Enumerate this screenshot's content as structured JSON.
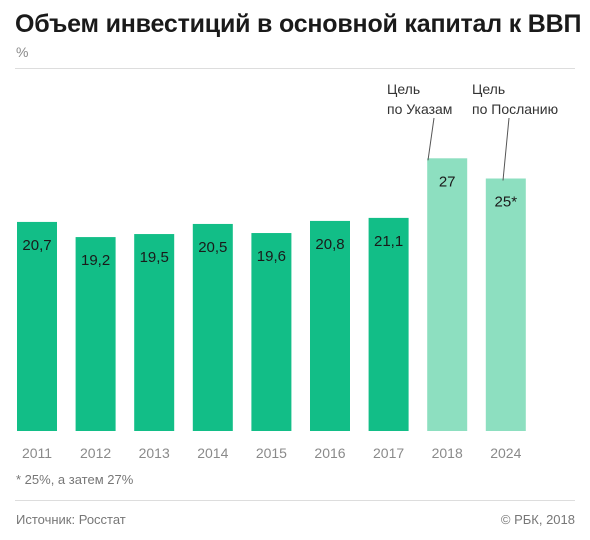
{
  "header": {
    "title": "Объем инвестиций в основной капитал к ВВП",
    "unit": "%"
  },
  "footer": {
    "footnote": "* 25%, а затем 27%",
    "source": "Источник: Росстат",
    "copyright": "© РБК, 2018"
  },
  "colors": {
    "actual": "#12be87",
    "target": "#8ddfc0",
    "gridline": "#dddddd",
    "leader": "#555555"
  },
  "chart_data": {
    "type": "bar",
    "title": "Объем инвестиций в основной капитал к ВВП",
    "ylabel": "%",
    "ylim": [
      0,
      30
    ],
    "grid": false,
    "categories": [
      "2011",
      "2012",
      "2013",
      "2014",
      "2015",
      "2016",
      "2017",
      "2018",
      "2024"
    ],
    "values": [
      20.7,
      19.2,
      19.5,
      20.5,
      19.6,
      20.8,
      21.1,
      27,
      25
    ],
    "value_labels": [
      "20,7",
      "19,2",
      "19,5",
      "20,5",
      "19,6",
      "20,8",
      "21,1",
      "27",
      "25*"
    ],
    "kind": [
      "actual",
      "actual",
      "actual",
      "actual",
      "actual",
      "actual",
      "actual",
      "target",
      "target"
    ],
    "annotations": [
      {
        "category": "2018",
        "lines": [
          "Цель",
          "по Указам"
        ]
      },
      {
        "category": "2024",
        "lines": [
          "Цель",
          "по Посланию"
        ]
      }
    ]
  }
}
